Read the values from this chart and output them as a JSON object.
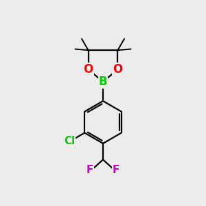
{
  "bg_color": "#ececec",
  "bond_color": "#000000",
  "bond_lw": 1.6,
  "atom_colors": {
    "B": "#00cc00",
    "O": "#ff0000",
    "Cl": "#00cc00",
    "F": "#cc00cc"
  },
  "atom_fontsizes": {
    "B": 12,
    "O": 12,
    "Cl": 11,
    "F": 11
  }
}
